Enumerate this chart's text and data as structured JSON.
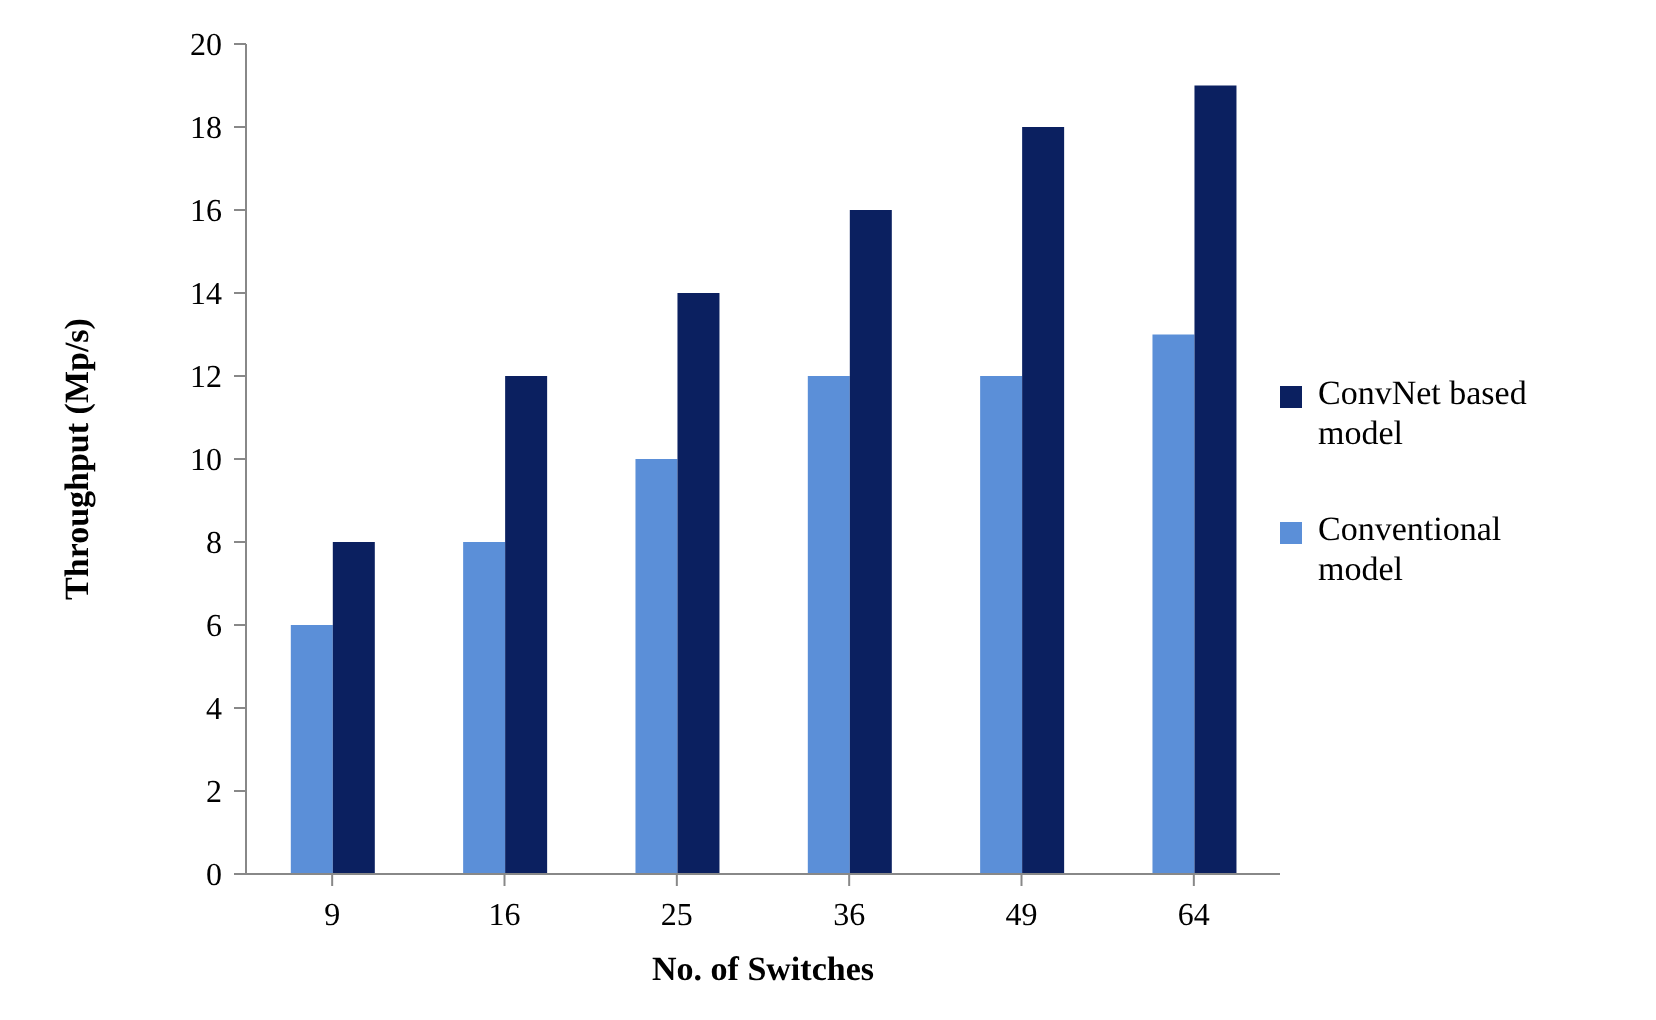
{
  "chart_data": {
    "type": "bar",
    "xlabel": "No. of Switches",
    "ylabel": "Throughput (Mp/s)",
    "categories": [
      "9",
      "16",
      "25",
      "36",
      "49",
      "64"
    ],
    "series": [
      {
        "name": "Conventional model",
        "color": "#5b8fd8",
        "values": [
          6,
          8,
          10,
          12,
          12,
          13
        ]
      },
      {
        "name": "ConvNet based model",
        "color": "#0b2060",
        "values": [
          8,
          12,
          14,
          16,
          18,
          19
        ]
      }
    ],
    "ylim": [
      0,
      20
    ],
    "yticks": [
      0,
      2,
      4,
      6,
      8,
      10,
      12,
      14,
      16,
      18,
      20
    ],
    "grid": false,
    "legend": "right"
  }
}
